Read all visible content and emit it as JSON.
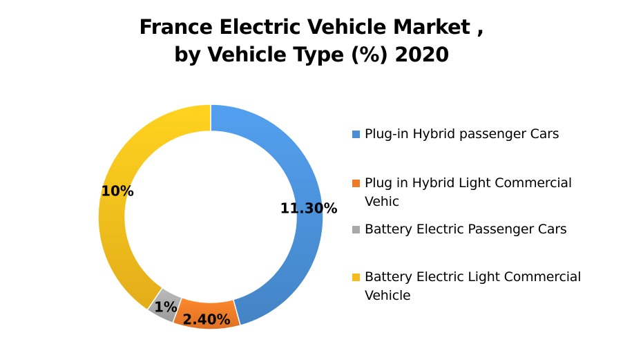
{
  "chart_data": {
    "type": "pie",
    "variant": "donut",
    "title_lines": [
      "France Electric Vehicle Market ,",
      "by Vehicle Type (%) 2020"
    ],
    "series": [
      {
        "name": "Plug-in Hybrid passenger Cars",
        "value": 11.3,
        "label": "11.30%",
        "color": "#4a8fd6"
      },
      {
        "name": "Plug in Hybrid Light Commercial Vehic",
        "value": 2.4,
        "label": "2.40%",
        "color": "#ef7a28"
      },
      {
        "name": "Battery Electric Passenger Cars",
        "value": 1,
        "label": "1%",
        "color": "#a8a8a8"
      },
      {
        "name": "Battery Electric Light Commercial Vehicle",
        "value": 10,
        "label": "10%",
        "color": "#f7bc1c"
      }
    ],
    "legend_position": "right",
    "start_angle_deg": 0,
    "direction": "clockwise"
  }
}
